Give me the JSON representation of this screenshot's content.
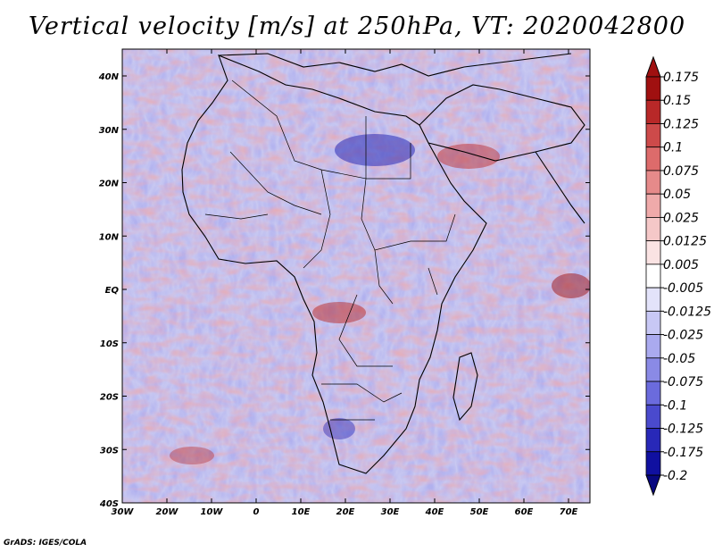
{
  "title": "Vertical velocity [m/s] at 250hPa, VT: 2020042800",
  "credit": "GrADS: IGES/COLA",
  "lat_labels": [
    "40N",
    "30N",
    "20N",
    "10N",
    "EQ",
    "10S",
    "20S",
    "30S",
    "40S"
  ],
  "lon_labels": [
    "30W",
    "20W",
    "10W",
    "0",
    "10E",
    "20E",
    "30E",
    "40E",
    "50E",
    "60E",
    "70E"
  ],
  "colorbar": {
    "levels": [
      {
        "label": "0.175",
        "color": "#a01010"
      },
      {
        "label": "0.15",
        "color": "#b82828"
      },
      {
        "label": "0.125",
        "color": "#cd4a4a"
      },
      {
        "label": "0.1",
        "color": "#dd6b6b"
      },
      {
        "label": "0.075",
        "color": "#e68a8a"
      },
      {
        "label": "0.05",
        "color": "#efaaaa"
      },
      {
        "label": "0.025",
        "color": "#f5c8c8"
      },
      {
        "label": "0.0125",
        "color": "#fae3e3"
      },
      {
        "label": "0.005",
        "color": "#ffffff"
      },
      {
        "label": "-0.005",
        "color": "#e3e3fa"
      },
      {
        "label": "-0.0125",
        "color": "#c8c8f5"
      },
      {
        "label": "-0.025",
        "color": "#aaaaef"
      },
      {
        "label": "-0.05",
        "color": "#8a8ae6"
      },
      {
        "label": "-0.075",
        "color": "#6b6bdd"
      },
      {
        "label": "-0.1",
        "color": "#4a4acd"
      },
      {
        "label": "-0.125",
        "color": "#2828b8"
      },
      {
        "label": "-0.175",
        "color": "#1010a0"
      },
      {
        "label": "-0.2",
        "color": "#080880"
      }
    ],
    "top_color": "#a01010",
    "bottom_color": "#080880"
  }
}
